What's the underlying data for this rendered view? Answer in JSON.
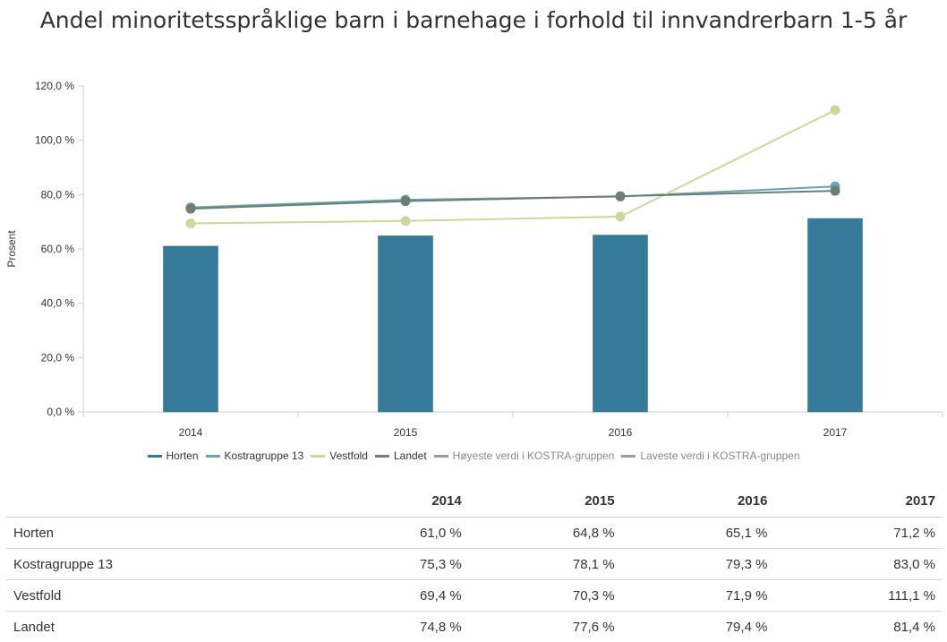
{
  "title": "Andel minoritetsspråklige barn i barnehage i forhold til innvandrerbarn 1-5 år",
  "chart_data": {
    "type": "bar",
    "title": "Andel minoritetsspråklige barn i barnehage i forhold til innvandrerbarn 1-5 år",
    "categories": [
      "2014",
      "2015",
      "2016",
      "2017"
    ],
    "ylabel": "Prosent",
    "xlabel": "",
    "ylim": [
      0,
      120
    ],
    "yticks": [
      0,
      20,
      40,
      60,
      80,
      100,
      120
    ],
    "ytick_labels": [
      "0,0 %",
      "20,0 %",
      "40,0 %",
      "60,0 %",
      "80,0 %",
      "100,0 %",
      "120,0 %"
    ],
    "legend_position": "bottom",
    "grid": false,
    "series": [
      {
        "name": "Horten",
        "type": "bar",
        "color": "#357a99",
        "values": [
          61.0,
          64.8,
          65.1,
          71.2
        ]
      },
      {
        "name": "Kostragruppe 13",
        "type": "line",
        "color": "#6aa2b8",
        "values": [
          75.3,
          78.1,
          79.3,
          83.0
        ]
      },
      {
        "name": "Vestfold",
        "type": "line",
        "color": "#d1d59a",
        "values": [
          69.4,
          70.3,
          71.9,
          111.1
        ]
      },
      {
        "name": "Landet",
        "type": "line",
        "color": "#6d7f73",
        "values": [
          74.8,
          77.6,
          79.4,
          81.4
        ]
      }
    ],
    "legend": [
      {
        "name": "Horten",
        "color": "#357a99",
        "dim": false
      },
      {
        "name": "Kostragruppe 13",
        "color": "#6aa2b8",
        "dim": false
      },
      {
        "name": "Vestfold",
        "color": "#d1d59a",
        "dim": false
      },
      {
        "name": "Landet",
        "color": "#6d7f73",
        "dim": false
      },
      {
        "name": "Høyeste verdi i KOSTRA-gruppen",
        "color": "#9a9a9a",
        "dim": true
      },
      {
        "name": "Laveste verdi i KOSTRA-gruppen",
        "color": "#9a9a9a",
        "dim": true
      }
    ]
  },
  "table": {
    "header": [
      "",
      "2014",
      "2015",
      "2016",
      "2017"
    ],
    "rows": [
      {
        "label": "Horten",
        "cells": [
          "61,0 %",
          "64,8 %",
          "65,1 %",
          "71,2 %"
        ]
      },
      {
        "label": "Kostragruppe 13",
        "cells": [
          "75,3 %",
          "78,1 %",
          "79,3 %",
          "83,0 %"
        ]
      },
      {
        "label": "Vestfold",
        "cells": [
          "69,4 %",
          "70,3 %",
          "71,9 %",
          "111,1 %"
        ]
      },
      {
        "label": "Landet",
        "cells": [
          "74,8 %",
          "77,6 %",
          "79,4 %",
          "81,4 %"
        ]
      }
    ]
  }
}
